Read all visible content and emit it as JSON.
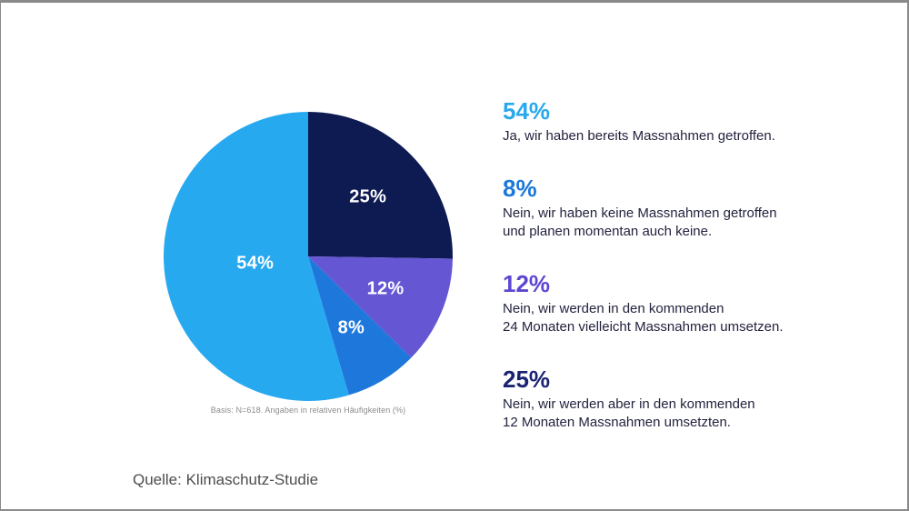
{
  "page": {
    "background": "#ffffff",
    "border_color": "#8a8a8a",
    "source_label": "Quelle: Klimaschutz-Studie"
  },
  "chart_data": {
    "type": "pie",
    "title": "",
    "unit": "%",
    "basis_note": "Basis: N=618. Angaben in relativen Häufigkeiten (%)",
    "start_angle_deg": 0,
    "direction": "clockwise",
    "label_color": "#ffffff",
    "slices": [
      {
        "label": "25%",
        "value": 25,
        "color": "#0e1a52",
        "answer": "Nein, wir werden aber in den kommenden 12 Monaten Massnahmen umsetzten."
      },
      {
        "label": "12%",
        "value": 12,
        "color": "#6556d4",
        "answer": "Nein, wir werden in den kommenden 24 Monaten vielleicht Massnahmen umsetzen."
      },
      {
        "label": "8%",
        "value": 8,
        "color": "#1e78dc",
        "answer": "Nein, wir haben keine Massnahmen getroffen und planen momentan auch keine."
      },
      {
        "label": "54%",
        "value": 54,
        "color": "#27a9f0",
        "answer": "Ja, wir haben bereits Massnahmen getroffen."
      }
    ]
  },
  "legend": {
    "items": [
      {
        "pct": "54%",
        "color": "#29a9ec",
        "lines": [
          "Ja, wir haben bereits Massnahmen getroffen."
        ]
      },
      {
        "pct": "8%",
        "color": "#1b79d8",
        "lines": [
          "Nein, wir haben keine Massnahmen getroffen",
          "und planen momentan auch keine."
        ]
      },
      {
        "pct": "12%",
        "color": "#5f46d2",
        "lines": [
          "Nein, wir werden in den kommenden",
          "24 Monaten vielleicht Massnahmen umsetzen."
        ]
      },
      {
        "pct": "25%",
        "color": "#1a2371",
        "lines": [
          "Nein, wir werden aber in den kommenden",
          "12 Monaten Massnahmen umsetzten."
        ]
      }
    ]
  }
}
